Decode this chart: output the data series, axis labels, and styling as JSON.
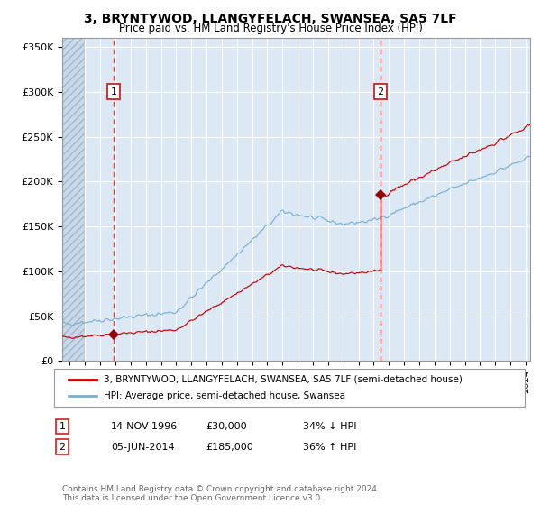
{
  "title1": "3, BRYNTYWOD, LLANGYFELACH, SWANSEA, SA5 7LF",
  "title2": "Price paid vs. HM Land Registry's House Price Index (HPI)",
  "ylim": [
    0,
    360000
  ],
  "yticks": [
    0,
    50000,
    100000,
    150000,
    200000,
    250000,
    300000,
    350000
  ],
  "ytick_labels": [
    "£0",
    "£50K",
    "£100K",
    "£150K",
    "£200K",
    "£250K",
    "£300K",
    "£350K"
  ],
  "bg_color": "#dce9f5",
  "line_red": "#cc0000",
  "line_blue": "#7ab0d4",
  "marker_color": "#990000",
  "point1_price": 30000,
  "point2_price": 185000,
  "legend1": "3, BRYNTYWOD, LLANGYFELACH, SWANSEA, SA5 7LF (semi-detached house)",
  "legend2": "HPI: Average price, semi-detached house, Swansea",
  "annot1_label": "1",
  "annot1_date": "14-NOV-1996",
  "annot1_price": "£30,000",
  "annot1_hpi": "34% ↓ HPI",
  "annot2_label": "2",
  "annot2_date": "05-JUN-2014",
  "annot2_price": "£185,000",
  "annot2_hpi": "36% ↑ HPI",
  "footer": "Contains HM Land Registry data © Crown copyright and database right 2024.\nThis data is licensed under the Open Government Licence v3.0.",
  "xstart_year": 1994,
  "xend_year": 2024
}
